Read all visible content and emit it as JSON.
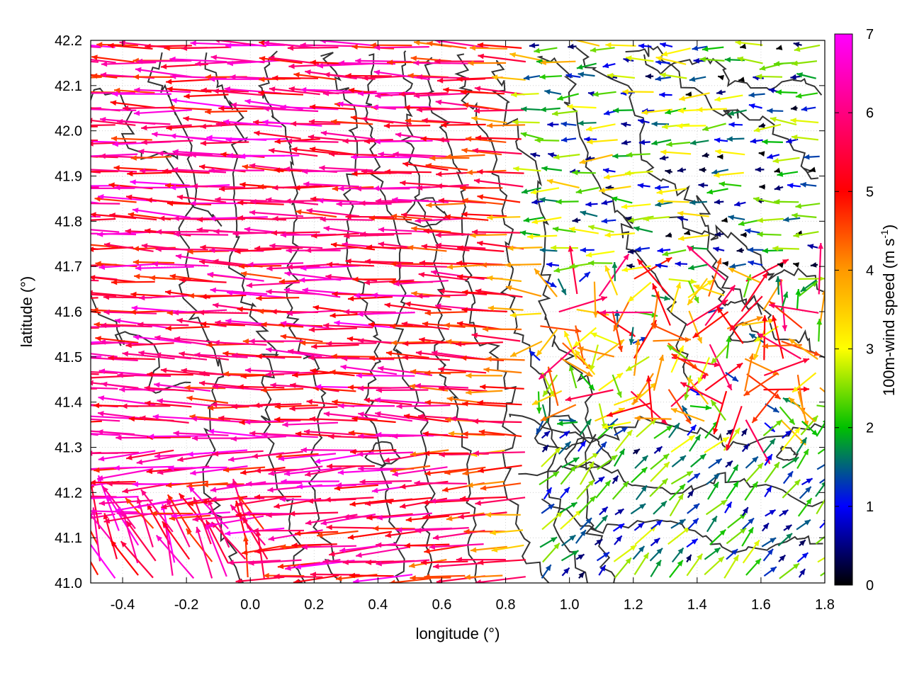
{
  "chart_data": {
    "type": "vector-field",
    "title": "",
    "xlabel": "longitude (°)",
    "ylabel": "latitude (°)",
    "xlim": [
      -0.5,
      1.8
    ],
    "ylim": [
      41.0,
      42.2
    ],
    "x_ticks": [
      "-0.4",
      "-0.2",
      "0.0",
      "0.2",
      "0.4",
      "0.6",
      "0.8",
      "1.0",
      "1.2",
      "1.4",
      "1.6",
      "1.8"
    ],
    "y_ticks": [
      "41.0",
      "41.1",
      "41.2",
      "41.3",
      "41.4",
      "41.5",
      "41.6",
      "41.7",
      "41.8",
      "41.9",
      "42.0",
      "42.1",
      "42.2"
    ],
    "grid": "dotted",
    "colorbar": {
      "label": "100m-wind speed (m s",
      "label_sup": "-1",
      "label_end": ")",
      "range": [
        0,
        7
      ],
      "ticks": [
        "0",
        "1",
        "2",
        "3",
        "4",
        "5",
        "6",
        "7"
      ],
      "colors": [
        "#000000",
        "#0000ff",
        "#00c000",
        "#ffff00",
        "#ff9900",
        "#ff0000",
        "#ff00ff"
      ]
    },
    "contour_color": "#333333",
    "wind_regions": [
      {
        "region": "west",
        "lon": [
          -0.5,
          0.9
        ],
        "lat": [
          41.0,
          42.2
        ],
        "direction": "westward",
        "speed_range_ms": [
          4,
          7
        ]
      },
      {
        "region": "northeast",
        "lon": [
          0.9,
          1.8
        ],
        "lat": [
          41.7,
          42.2
        ],
        "direction": "westward",
        "speed_range_ms": [
          0.5,
          4
        ]
      },
      {
        "region": "southeast",
        "lon": [
          0.9,
          1.8
        ],
        "lat": [
          41.0,
          41.35
        ],
        "direction": "northeastward",
        "speed_range_ms": [
          0.3,
          3
        ]
      },
      {
        "region": "east-central",
        "lon": [
          1.2,
          1.8
        ],
        "lat": [
          41.35,
          41.7
        ],
        "direction": "variable",
        "speed_range_ms": [
          1,
          6
        ]
      }
    ]
  }
}
